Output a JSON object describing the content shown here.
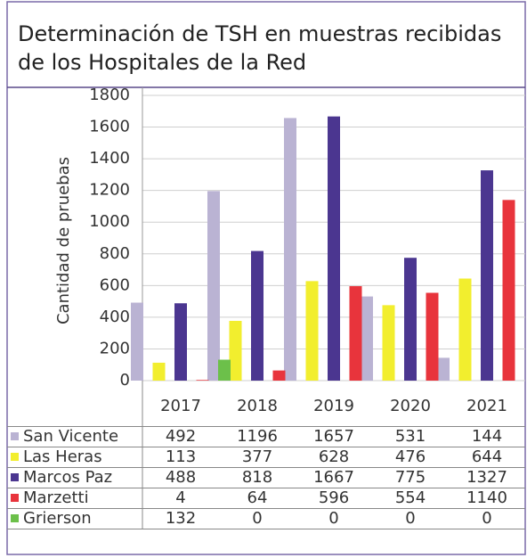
{
  "chart_data": {
    "type": "bar",
    "title": "Determinación de TSH en muestras recibidas de los Hospitales de la Red",
    "y_label": "Cantidad de pruebas",
    "categories": [
      "2017",
      "2018",
      "2019",
      "2020",
      "2021"
    ],
    "series": [
      {
        "name": "San Vicente",
        "color": "#bab3d3",
        "values": [
          492,
          1196,
          1657,
          531,
          144
        ]
      },
      {
        "name": "Las Heras",
        "color": "#f2ee2e",
        "values": [
          113,
          377,
          628,
          476,
          644
        ]
      },
      {
        "name": "Marcos Paz",
        "color": "#4b3690",
        "values": [
          488,
          818,
          1667,
          775,
          1327
        ]
      },
      {
        "name": "Marzetti",
        "color": "#e8343c",
        "values": [
          4,
          64,
          596,
          554,
          1140
        ]
      },
      {
        "name": "Grierson",
        "color": "#6cc04a",
        "values": [
          132,
          0,
          0,
          0,
          0
        ]
      }
    ],
    "ylim": [
      0,
      1800
    ],
    "yticks": [
      0,
      200,
      400,
      600,
      800,
      1000,
      1200,
      1400,
      1600,
      1800
    ],
    "grid": true
  }
}
